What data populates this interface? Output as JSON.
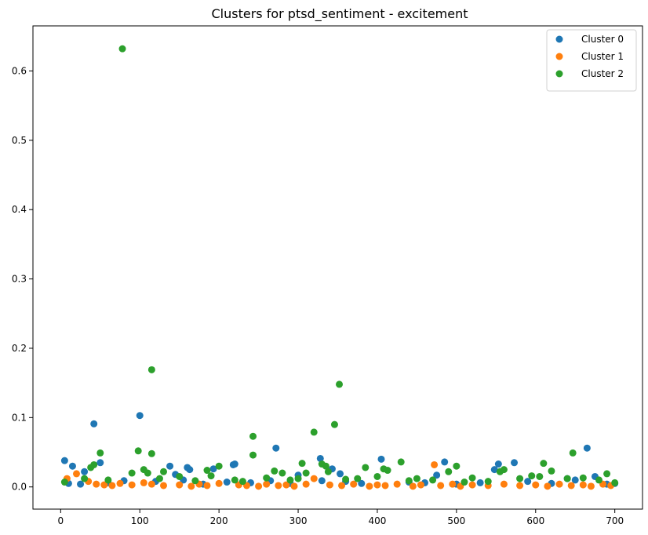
{
  "chart_data": {
    "type": "scatter",
    "title": "Clusters for ptsd_sentiment - excitement",
    "xlabel": "",
    "ylabel": "",
    "xlim": [
      -35,
      735
    ],
    "ylim": [
      -0.032,
      0.665
    ],
    "xticks": [
      0,
      100,
      200,
      300,
      400,
      500,
      600,
      700
    ],
    "xtick_labels": [
      "0",
      "100",
      "200",
      "300",
      "400",
      "500",
      "600",
      "700"
    ],
    "yticks": [
      0.0,
      0.1,
      0.2,
      0.3,
      0.4,
      0.5,
      0.6
    ],
    "ytick_labels": [
      "0.0",
      "0.1",
      "0.2",
      "0.3",
      "0.4",
      "0.5",
      "0.6"
    ],
    "grid": false,
    "legend_position": "top-right",
    "series": [
      {
        "name": "Cluster 0",
        "color": "#1f77b4",
        "points": [
          [
            5,
            0.038
          ],
          [
            15,
            0.03
          ],
          [
            30,
            0.022
          ],
          [
            42,
            0.091
          ],
          [
            50,
            0.035
          ],
          [
            100,
            0.103
          ],
          [
            138,
            0.03
          ],
          [
            145,
            0.018
          ],
          [
            160,
            0.028
          ],
          [
            163,
            0.025
          ],
          [
            193,
            0.026
          ],
          [
            218,
            0.032
          ],
          [
            220,
            0.033
          ],
          [
            272,
            0.056
          ],
          [
            300,
            0.017
          ],
          [
            328,
            0.041
          ],
          [
            343,
            0.026
          ],
          [
            353,
            0.019
          ],
          [
            405,
            0.04
          ],
          [
            475,
            0.017
          ],
          [
            485,
            0.036
          ],
          [
            548,
            0.025
          ],
          [
            553,
            0.033
          ],
          [
            573,
            0.035
          ],
          [
            665,
            0.056
          ],
          [
            675,
            0.015
          ],
          [
            10,
            0.005
          ],
          [
            60,
            0.006
          ],
          [
            120,
            0.008
          ],
          [
            180,
            0.004
          ],
          [
            240,
            0.006
          ],
          [
            290,
            0.005
          ],
          [
            330,
            0.009
          ],
          [
            380,
            0.005
          ],
          [
            440,
            0.007
          ],
          [
            500,
            0.004
          ],
          [
            530,
            0.006
          ],
          [
            590,
            0.008
          ],
          [
            620,
            0.005
          ],
          [
            650,
            0.01
          ],
          [
            690,
            0.004
          ],
          [
            80,
            0.009
          ],
          [
            210,
            0.007
          ],
          [
            360,
            0.008
          ],
          [
            460,
            0.006
          ],
          [
            640,
            0.012
          ],
          [
            700,
            0.005
          ],
          [
            25,
            0.004
          ],
          [
            155,
            0.01
          ],
          [
            265,
            0.009
          ]
        ]
      },
      {
        "name": "Cluster 1",
        "color": "#ff7f0e",
        "points": [
          [
            8,
            0.012
          ],
          [
            20,
            0.019
          ],
          [
            35,
            0.008
          ],
          [
            45,
            0.004
          ],
          [
            55,
            0.003
          ],
          [
            65,
            0.002
          ],
          [
            75,
            0.005
          ],
          [
            90,
            0.003
          ],
          [
            105,
            0.006
          ],
          [
            115,
            0.004
          ],
          [
            130,
            0.002
          ],
          [
            150,
            0.003
          ],
          [
            165,
            0.001
          ],
          [
            175,
            0.004
          ],
          [
            185,
            0.002
          ],
          [
            200,
            0.005
          ],
          [
            225,
            0.003
          ],
          [
            235,
            0.002
          ],
          [
            250,
            0.001
          ],
          [
            260,
            0.004
          ],
          [
            275,
            0.002
          ],
          [
            285,
            0.003
          ],
          [
            295,
            0.001
          ],
          [
            310,
            0.004
          ],
          [
            320,
            0.012
          ],
          [
            340,
            0.003
          ],
          [
            355,
            0.002
          ],
          [
            370,
            0.004
          ],
          [
            390,
            0.001
          ],
          [
            400,
            0.003
          ],
          [
            410,
            0.002
          ],
          [
            425,
            0.004
          ],
          [
            445,
            0.001
          ],
          [
            455,
            0.003
          ],
          [
            472,
            0.032
          ],
          [
            480,
            0.002
          ],
          [
            495,
            0.004
          ],
          [
            505,
            0.001
          ],
          [
            520,
            0.003
          ],
          [
            540,
            0.002
          ],
          [
            560,
            0.004
          ],
          [
            580,
            0.002
          ],
          [
            600,
            0.003
          ],
          [
            615,
            0.001
          ],
          [
            630,
            0.004
          ],
          [
            645,
            0.002
          ],
          [
            660,
            0.003
          ],
          [
            670,
            0.001
          ],
          [
            685,
            0.004
          ],
          [
            695,
            0.002
          ]
        ]
      },
      {
        "name": "Cluster 2",
        "color": "#2ca02c",
        "points": [
          [
            78,
            0.632
          ],
          [
            115,
            0.169
          ],
          [
            352,
            0.148
          ],
          [
            346,
            0.09
          ],
          [
            320,
            0.079
          ],
          [
            243,
            0.073
          ],
          [
            98,
            0.052
          ],
          [
            115,
            0.048
          ],
          [
            50,
            0.049
          ],
          [
            243,
            0.046
          ],
          [
            647,
            0.049
          ],
          [
            42,
            0.032
          ],
          [
            38,
            0.028
          ],
          [
            105,
            0.025
          ],
          [
            110,
            0.02
          ],
          [
            130,
            0.022
          ],
          [
            185,
            0.024
          ],
          [
            200,
            0.03
          ],
          [
            270,
            0.023
          ],
          [
            280,
            0.02
          ],
          [
            305,
            0.034
          ],
          [
            310,
            0.02
          ],
          [
            330,
            0.033
          ],
          [
            335,
            0.03
          ],
          [
            338,
            0.022
          ],
          [
            385,
            0.028
          ],
          [
            408,
            0.026
          ],
          [
            413,
            0.024
          ],
          [
            430,
            0.036
          ],
          [
            490,
            0.022
          ],
          [
            500,
            0.03
          ],
          [
            555,
            0.022
          ],
          [
            560,
            0.025
          ],
          [
            610,
            0.034
          ],
          [
            620,
            0.023
          ],
          [
            690,
            0.019
          ],
          [
            5,
            0.007
          ],
          [
            30,
            0.012
          ],
          [
            60,
            0.01
          ],
          [
            90,
            0.02
          ],
          [
            125,
            0.012
          ],
          [
            150,
            0.015
          ],
          [
            190,
            0.016
          ],
          [
            220,
            0.01
          ],
          [
            260,
            0.013
          ],
          [
            300,
            0.012
          ],
          [
            360,
            0.011
          ],
          [
            400,
            0.015
          ],
          [
            450,
            0.012
          ],
          [
            470,
            0.01
          ],
          [
            520,
            0.013
          ],
          [
            540,
            0.008
          ],
          [
            580,
            0.012
          ],
          [
            595,
            0.016
          ],
          [
            605,
            0.015
          ],
          [
            640,
            0.012
          ],
          [
            660,
            0.013
          ],
          [
            680,
            0.01
          ],
          [
            700,
            0.006
          ],
          [
            170,
            0.009
          ],
          [
            230,
            0.008
          ],
          [
            290,
            0.01
          ],
          [
            375,
            0.012
          ],
          [
            440,
            0.009
          ],
          [
            510,
            0.007
          ]
        ]
      }
    ]
  }
}
